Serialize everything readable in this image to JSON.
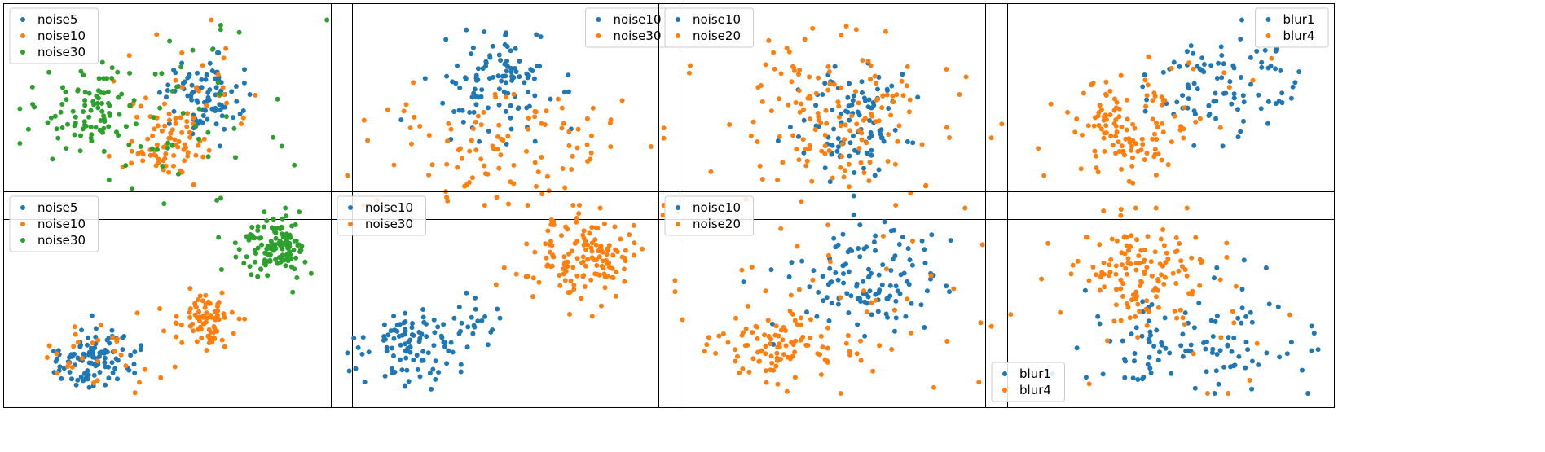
{
  "colors": {
    "blue": "#1f77b4",
    "orange": "#ff7f0e",
    "green": "#2ca02c"
  },
  "chart_data": [
    {
      "type": "scatter",
      "title": "",
      "xlabel": "",
      "ylabel": "",
      "axes_ticks": false,
      "legend_position": "upper-left",
      "series": [
        {
          "name": "noise5",
          "color": "#1f77b4",
          "clusters": [
            {
              "cx": 0.57,
              "cy": 0.58,
              "sx": 0.055,
              "sy": 0.1,
              "n": 90
            }
          ]
        },
        {
          "name": "noise10",
          "color": "#ff7f0e",
          "clusters": [
            {
              "cx": 0.46,
              "cy": 0.36,
              "sx": 0.06,
              "sy": 0.09,
              "n": 75
            },
            {
              "cx": 0.55,
              "cy": 0.55,
              "sx": 0.15,
              "sy": 0.2,
              "n": 30
            }
          ]
        },
        {
          "name": "noise30",
          "color": "#2ca02c",
          "clusters": [
            {
              "cx": 0.24,
              "cy": 0.5,
              "sx": 0.065,
              "sy": 0.1,
              "n": 75
            },
            {
              "cx": 0.5,
              "cy": 0.5,
              "sx": 0.22,
              "sy": 0.25,
              "n": 60
            }
          ]
        }
      ]
    },
    {
      "type": "scatter",
      "title": "",
      "xlabel": "",
      "ylabel": "",
      "axes_ticks": false,
      "legend_position": "upper-right",
      "series": [
        {
          "name": "noise10",
          "color": "#1f77b4",
          "clusters": [
            {
              "cx": 0.47,
              "cy": 0.63,
              "sx": 0.09,
              "sy": 0.12,
              "n": 110
            }
          ]
        },
        {
          "name": "noise30",
          "color": "#ff7f0e",
          "clusters": [
            {
              "cx": 0.5,
              "cy": 0.32,
              "sx": 0.22,
              "sy": 0.17,
              "n": 110
            }
          ]
        }
      ]
    },
    {
      "type": "scatter",
      "title": "",
      "xlabel": "",
      "ylabel": "",
      "axes_ticks": false,
      "legend_position": "upper-left",
      "series": [
        {
          "name": "noise10",
          "color": "#1f77b4",
          "clusters": [
            {
              "cx": 0.55,
              "cy": 0.46,
              "sx": 0.075,
              "sy": 0.14,
              "n": 100
            }
          ]
        },
        {
          "name": "noise20",
          "color": "#ff7f0e",
          "clusters": [
            {
              "cx": 0.52,
              "cy": 0.5,
              "sx": 0.18,
              "sy": 0.2,
              "n": 150
            }
          ]
        }
      ]
    },
    {
      "type": "scatter",
      "title": "",
      "xlabel": "",
      "ylabel": "",
      "axes_ticks": false,
      "legend_position": "upper-right",
      "series": [
        {
          "name": "blur1",
          "color": "#1f77b4",
          "clusters": [
            {
              "cx": 0.7,
              "cy": 0.65,
              "sx": 0.13,
              "sy": 0.12,
              "n": 90
            }
          ]
        },
        {
          "name": "blur4",
          "color": "#ff7f0e",
          "clusters": [
            {
              "cx": 0.41,
              "cy": 0.43,
              "sx": 0.08,
              "sy": 0.13,
              "n": 110
            },
            {
              "cx": 0.45,
              "cy": 0.5,
              "sx": 0.22,
              "sy": 0.22,
              "n": 20
            }
          ]
        }
      ]
    },
    {
      "type": "scatter",
      "title": "",
      "xlabel": "",
      "ylabel": "",
      "axes_ticks": false,
      "legend_position": "upper-left",
      "series": [
        {
          "name": "noise5",
          "color": "#1f77b4",
          "clusters": [
            {
              "cx": 0.25,
              "cy": 0.22,
              "sx": 0.065,
              "sy": 0.07,
              "n": 100
            }
          ]
        },
        {
          "name": "noise10",
          "color": "#ff7f0e",
          "clusters": [
            {
              "cx": 0.58,
              "cy": 0.38,
              "sx": 0.045,
              "sy": 0.07,
              "n": 80
            },
            {
              "cx": 0.25,
              "cy": 0.22,
              "sx": 0.1,
              "sy": 0.1,
              "n": 30
            }
          ]
        },
        {
          "name": "noise30",
          "color": "#2ca02c",
          "clusters": [
            {
              "cx": 0.79,
              "cy": 0.76,
              "sx": 0.05,
              "sy": 0.08,
              "n": 130
            }
          ]
        }
      ]
    },
    {
      "type": "scatter",
      "title": "",
      "xlabel": "",
      "ylabel": "",
      "axes_ticks": false,
      "legend_position": "upper-left",
      "series": [
        {
          "name": "noise10",
          "color": "#1f77b4",
          "clusters": [
            {
              "cx": 0.22,
              "cy": 0.27,
              "sx": 0.08,
              "sy": 0.09,
              "n": 100
            },
            {
              "cx": 0.42,
              "cy": 0.4,
              "sx": 0.04,
              "sy": 0.05,
              "n": 20
            }
          ]
        },
        {
          "name": "noise30",
          "color": "#ff7f0e",
          "clusters": [
            {
              "cx": 0.73,
              "cy": 0.7,
              "sx": 0.08,
              "sy": 0.1,
              "n": 140
            }
          ]
        }
      ]
    },
    {
      "type": "scatter",
      "title": "",
      "xlabel": "",
      "ylabel": "",
      "axes_ticks": false,
      "legend_position": "upper-left",
      "series": [
        {
          "name": "noise10",
          "color": "#1f77b4",
          "clusters": [
            {
              "cx": 0.61,
              "cy": 0.6,
              "sx": 0.12,
              "sy": 0.12,
              "n": 120
            }
          ]
        },
        {
          "name": "noise20",
          "color": "#ff7f0e",
          "clusters": [
            {
              "cx": 0.34,
              "cy": 0.27,
              "sx": 0.1,
              "sy": 0.1,
              "n": 100
            },
            {
              "cx": 0.55,
              "cy": 0.55,
              "sx": 0.25,
              "sy": 0.25,
              "n": 40
            }
          ]
        }
      ]
    },
    {
      "type": "scatter",
      "title": "",
      "xlabel": "",
      "ylabel": "",
      "axes_ticks": false,
      "legend_position": "lower-left",
      "series": [
        {
          "name": "blur1",
          "color": "#1f77b4",
          "clusters": [
            {
              "cx": 0.6,
              "cy": 0.28,
              "sx": 0.17,
              "sy": 0.14,
              "n": 110
            }
          ]
        },
        {
          "name": "blur4",
          "color": "#ff7f0e",
          "clusters": [
            {
              "cx": 0.45,
              "cy": 0.62,
              "sx": 0.1,
              "sy": 0.12,
              "n": 120
            },
            {
              "cx": 0.5,
              "cy": 0.55,
              "sx": 0.25,
              "sy": 0.25,
              "n": 30
            }
          ]
        }
      ]
    }
  ]
}
